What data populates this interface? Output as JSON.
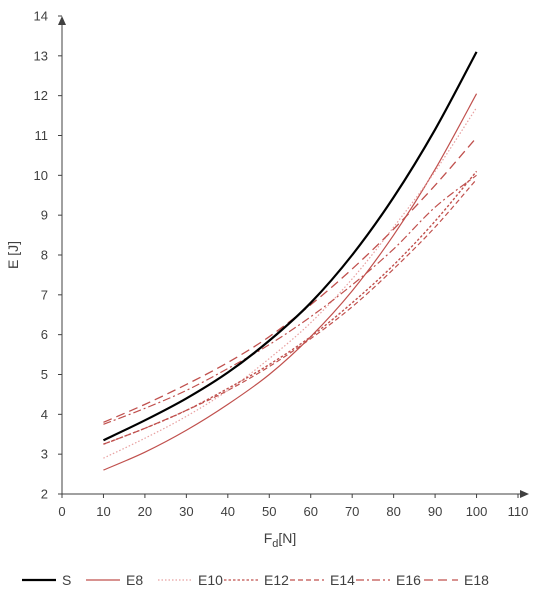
{
  "chart_data": {
    "type": "line",
    "title": "",
    "xlabel": "F",
    "xlabel_sub": "d",
    "xlabel_unit": "[N]",
    "ylabel": "E [J]",
    "xlim": [
      0,
      110
    ],
    "ylim": [
      2,
      14
    ],
    "xticks": [
      0,
      10,
      20,
      30,
      40,
      50,
      60,
      70,
      80,
      90,
      100,
      110
    ],
    "yticks": [
      2,
      3,
      4,
      5,
      6,
      7,
      8,
      9,
      10,
      11,
      12,
      13,
      14
    ],
    "grid": false,
    "legend_position": "bottom",
    "x": [
      10,
      20,
      30,
      40,
      50,
      60,
      70,
      80,
      90,
      100
    ],
    "series": [
      {
        "name": "S",
        "color": "#000000",
        "dash": "",
        "width": 2.2,
        "values": [
          3.35,
          3.85,
          4.4,
          5.05,
          5.85,
          6.8,
          8.0,
          9.45,
          11.15,
          13.1
        ]
      },
      {
        "name": "E8",
        "color": "#c0504d",
        "dash": "",
        "width": 1.2,
        "values": [
          2.6,
          3.05,
          3.6,
          4.25,
          5.0,
          5.95,
          7.1,
          8.5,
          10.15,
          12.05
        ]
      },
      {
        "name": "E10",
        "color": "#e8a0a0",
        "dash": "1.5,2",
        "width": 1.2,
        "values": [
          2.9,
          3.4,
          3.95,
          4.6,
          5.4,
          6.3,
          7.4,
          8.7,
          10.1,
          11.7
        ]
      },
      {
        "name": "E12",
        "color": "#c0504d",
        "dash": "2.5,2",
        "width": 1.4,
        "values": [
          3.25,
          3.65,
          4.1,
          4.65,
          5.25,
          5.95,
          6.8,
          7.75,
          8.85,
          10.1
        ]
      },
      {
        "name": "E14",
        "color": "#c0504d",
        "dash": "5,3",
        "width": 1.2,
        "values": [
          3.25,
          3.65,
          4.1,
          4.6,
          5.2,
          5.9,
          6.7,
          7.65,
          8.7,
          9.9
        ]
      },
      {
        "name": "E16",
        "color": "#c0504d",
        "dash": "8,3,2,3",
        "width": 1.2,
        "values": [
          3.75,
          4.15,
          4.6,
          5.15,
          5.75,
          6.45,
          7.25,
          8.15,
          9.2,
          10.0
        ]
      },
      {
        "name": "E18",
        "color": "#c0504d",
        "dash": "9,5",
        "width": 1.3,
        "values": [
          3.8,
          4.25,
          4.75,
          5.3,
          5.95,
          6.75,
          7.65,
          8.65,
          9.75,
          10.95
        ]
      }
    ]
  }
}
